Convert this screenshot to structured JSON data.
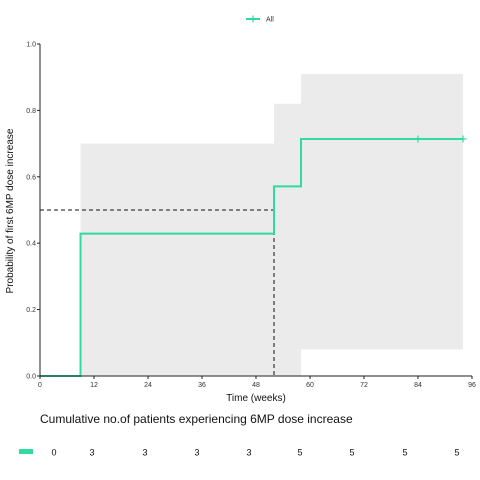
{
  "chart_data": {
    "type": "line",
    "step": true,
    "xlabel": "Time (weeks)",
    "ylabel": "Probability of first 6MP dose increase",
    "xlim": [
      0,
      96
    ],
    "ylim": [
      0,
      1.0
    ],
    "xticks": [
      0,
      12,
      24,
      36,
      48,
      60,
      72,
      84,
      96
    ],
    "yticks": [
      0.0,
      0.2,
      0.4,
      0.6,
      0.8,
      1.0
    ],
    "grid": false,
    "legend": {
      "position": "top",
      "entries": [
        "All"
      ]
    },
    "series": [
      {
        "name": "All",
        "color": "#2fdba0",
        "steps": [
          {
            "x": 0,
            "y": 0
          },
          {
            "x": 9,
            "y": 0.429
          },
          {
            "x": 52,
            "y": 0.571
          },
          {
            "x": 58,
            "y": 0.714
          },
          {
            "x": 94,
            "y": 0.714
          }
        ],
        "censored": [
          {
            "x": 84,
            "y": 0.714
          },
          {
            "x": 94,
            "y": 0.714
          }
        ],
        "ci_color": "#ebebeb",
        "ci_bands": [
          {
            "x0": 9,
            "x1": 52,
            "lower": 0.0,
            "upper": 0.7
          },
          {
            "x0": 52,
            "x1": 58,
            "lower": 0.0,
            "upper": 0.82
          },
          {
            "x0": 58,
            "x1": 94,
            "lower": 0.08,
            "upper": 0.91
          }
        ]
      }
    ],
    "median_reference": {
      "y": 0.5,
      "x": 52,
      "style": "dashed"
    },
    "risk_table": {
      "title": "Cumulative no.of patients experiencing 6MP dose increase",
      "values": [
        "0",
        "3",
        "3",
        "3",
        "3",
        "5",
        "5",
        "5",
        "5"
      ]
    }
  }
}
